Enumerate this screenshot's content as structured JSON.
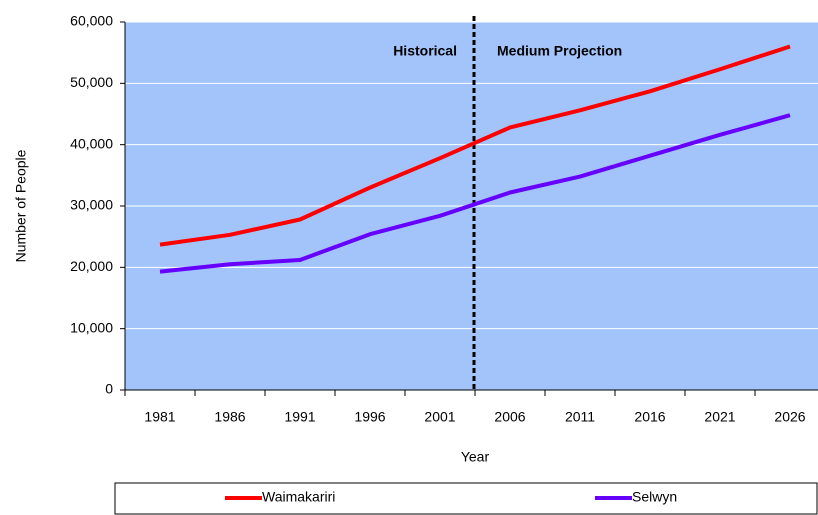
{
  "chart_data": {
    "type": "line",
    "x_label": "Year",
    "y_label": "Number of People",
    "annotations": [
      "Historical",
      "Medium Projection"
    ],
    "categories": [
      "1981",
      "1986",
      "1991",
      "1996",
      "2001",
      "2006",
      "2011",
      "2016",
      "2021",
      "2026"
    ],
    "series": [
      {
        "name": "Waimakariri",
        "color": "#ff0000",
        "values": [
          23700,
          25300,
          27800,
          33000,
          37800,
          42800,
          45600,
          48700,
          52300,
          56000
        ]
      },
      {
        "name": "Selwyn",
        "color": "#6600ff",
        "values": [
          19300,
          20500,
          21200,
          25400,
          28400,
          32200,
          34800,
          38200,
          41600,
          44800
        ]
      }
    ],
    "ylim": [
      0,
      60000
    ],
    "yticks": [
      {
        "value": 0,
        "label": "0"
      },
      {
        "value": 10000,
        "label": "10,000"
      },
      {
        "value": 20000,
        "label": "20,000"
      },
      {
        "value": 30000,
        "label": "30,000"
      },
      {
        "value": 40000,
        "label": "40,000"
      },
      {
        "value": 50000,
        "label": "50,000"
      },
      {
        "value": 60000,
        "label": "60,000"
      }
    ],
    "background": "#a3c4fb"
  }
}
